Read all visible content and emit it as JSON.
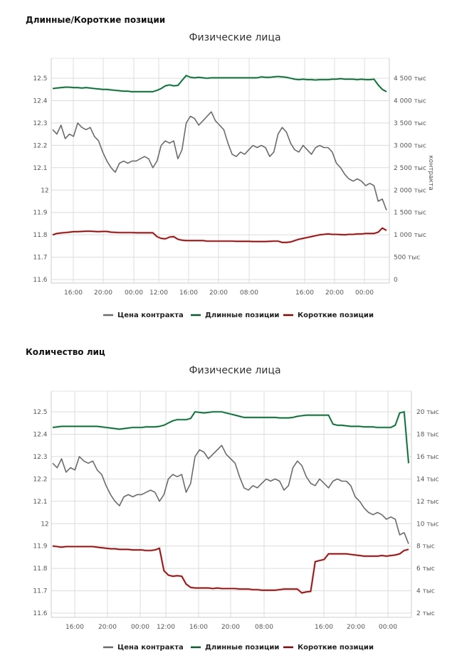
{
  "chart_data": [
    {
      "type": "line",
      "section_title": "Длинные/Короткие позиции",
      "title": "Физические лица",
      "left_axis": {
        "ticks": [
          "12.5",
          "12.4",
          "12.3",
          "12.2",
          "12.1",
          "12",
          "11.9",
          "11.8",
          "11.7",
          "11.6"
        ],
        "range": [
          11.6,
          12.59
        ]
      },
      "right_axis": {
        "label": "контракта",
        "ticks": [
          "4 500 тыс",
          "4 000 тыс",
          "3 500 тыс",
          "3 000 тыс",
          "2 500 тыс",
          "2 000 тыс",
          "1 500 тыс",
          "1 000 тыс",
          "500 тыс",
          "0"
        ],
        "values": [
          4500,
          4000,
          3500,
          3000,
          2500,
          2000,
          1500,
          1000,
          500,
          0
        ],
        "range": [
          0,
          5000
        ]
      },
      "x_ticks": [
        "16:00",
        "20:00",
        "00:00",
        "12:00",
        "16:00",
        "20:00",
        "08:00",
        "16:00",
        "20:00",
        "00:00"
      ],
      "grid": true,
      "legend": [
        "Цена контракта",
        "Длинные позиции",
        "Короткие позиции"
      ],
      "legend_position": "bottom",
      "colors": {
        "price": "#6b6b6b",
        "long": "#0b5a32",
        "short": "#7a0a0a"
      },
      "series": [
        {
          "name": "Цена контракта",
          "axis": "left",
          "values": [
            12.27,
            12.25,
            12.29,
            12.23,
            12.25,
            12.24,
            12.3,
            12.28,
            12.27,
            12.28,
            12.24,
            12.22,
            12.17,
            12.13,
            12.1,
            12.08,
            12.12,
            12.13,
            12.12,
            12.13,
            12.13,
            12.14,
            12.15,
            12.14,
            12.1,
            12.13,
            12.2,
            12.22,
            12.21,
            12.22,
            12.14,
            12.18,
            12.3,
            12.33,
            12.32,
            12.29,
            12.31,
            12.33,
            12.35,
            12.31,
            12.29,
            12.27,
            12.21,
            12.16,
            12.15,
            12.17,
            12.16,
            12.18,
            12.2,
            12.19,
            12.2,
            12.19,
            12.15,
            12.17,
            12.25,
            12.28,
            12.26,
            12.21,
            12.18,
            12.17,
            12.2,
            12.18,
            12.16,
            12.19,
            12.2,
            12.19,
            12.19,
            12.17,
            12.12,
            12.1,
            12.07,
            12.05,
            12.04,
            12.05,
            12.04,
            12.02,
            12.03,
            12.02,
            11.95,
            11.96,
            11.91
          ]
        },
        {
          "name": "Длинные позиции",
          "axis": "right",
          "values": [
            4270,
            4280,
            4290,
            4300,
            4300,
            4290,
            4290,
            4280,
            4290,
            4280,
            4270,
            4260,
            4250,
            4250,
            4240,
            4230,
            4220,
            4210,
            4210,
            4200,
            4200,
            4200,
            4200,
            4200,
            4200,
            4230,
            4270,
            4330,
            4350,
            4330,
            4340,
            4450,
            4560,
            4520,
            4510,
            4520,
            4510,
            4500,
            4510,
            4510,
            4510,
            4510,
            4510,
            4510,
            4510,
            4510,
            4510,
            4510,
            4510,
            4510,
            4530,
            4520,
            4520,
            4530,
            4540,
            4530,
            4520,
            4500,
            4480,
            4470,
            4480,
            4470,
            4470,
            4460,
            4470,
            4470,
            4470,
            4480,
            4480,
            4490,
            4480,
            4480,
            4480,
            4470,
            4480,
            4470,
            4470,
            4480,
            4350,
            4250,
            4200
          ]
        },
        {
          "name": "Короткие позиции",
          "axis": "right",
          "values": [
            1000,
            1030,
            1040,
            1050,
            1060,
            1070,
            1070,
            1075,
            1080,
            1080,
            1075,
            1070,
            1075,
            1075,
            1060,
            1055,
            1050,
            1050,
            1050,
            1050,
            1045,
            1045,
            1045,
            1045,
            1045,
            960,
            920,
            910,
            950,
            960,
            900,
            880,
            870,
            870,
            870,
            870,
            870,
            860,
            860,
            860,
            860,
            860,
            860,
            860,
            855,
            855,
            855,
            855,
            850,
            850,
            850,
            850,
            855,
            860,
            860,
            830,
            830,
            840,
            870,
            900,
            920,
            940,
            960,
            980,
            1000,
            1010,
            1020,
            1010,
            1010,
            1005,
            1000,
            1010,
            1010,
            1020,
            1020,
            1030,
            1030,
            1030,
            1060,
            1150,
            1100
          ]
        }
      ]
    },
    {
      "type": "line",
      "section_title": "Количество лиц",
      "title": "Физические лица",
      "left_axis": {
        "ticks": [
          "12.5",
          "12.4",
          "12.3",
          "12.2",
          "12.1",
          "12",
          "11.9",
          "11.8",
          "11.7",
          "11.6"
        ],
        "range": [
          11.6,
          12.6
        ]
      },
      "right_axis": {
        "ticks": [
          "20 тыс",
          "18 тыс",
          "16 тыс",
          "14 тыс",
          "12 тыс",
          "10 тыс",
          "8 тыс",
          "6 тыс",
          "4 тыс",
          "2 тыс"
        ],
        "values": [
          20000,
          18000,
          16000,
          14000,
          12000,
          10000,
          8000,
          6000,
          4000,
          2000
        ],
        "range": [
          2000,
          22000
        ]
      },
      "x_ticks": [
        "16:00",
        "20:00",
        "00:00",
        "12:00",
        "16:00",
        "20:00",
        "08:00",
        "16:00",
        "20:00",
        "00:00"
      ],
      "grid": true,
      "legend": [
        "Цена контракта",
        "Длинные позиции",
        "Короткие позиции"
      ],
      "legend_position": "bottom",
      "colors": {
        "price": "#6b6b6b",
        "long": "#0b5a32",
        "short": "#7a0a0a"
      },
      "series": [
        {
          "name": "Цена контракта",
          "axis": "left",
          "values": [
            12.27,
            12.25,
            12.29,
            12.23,
            12.25,
            12.24,
            12.3,
            12.28,
            12.27,
            12.28,
            12.24,
            12.22,
            12.17,
            12.13,
            12.1,
            12.08,
            12.12,
            12.13,
            12.12,
            12.13,
            12.13,
            12.14,
            12.15,
            12.14,
            12.1,
            12.13,
            12.2,
            12.22,
            12.21,
            12.22,
            12.14,
            12.18,
            12.3,
            12.33,
            12.32,
            12.29,
            12.31,
            12.33,
            12.35,
            12.31,
            12.29,
            12.27,
            12.21,
            12.16,
            12.15,
            12.17,
            12.16,
            12.18,
            12.2,
            12.19,
            12.2,
            12.19,
            12.15,
            12.17,
            12.25,
            12.28,
            12.26,
            12.21,
            12.18,
            12.17,
            12.2,
            12.18,
            12.16,
            12.19,
            12.2,
            12.19,
            12.19,
            12.17,
            12.12,
            12.1,
            12.07,
            12.05,
            12.04,
            12.05,
            12.04,
            12.02,
            12.03,
            12.02,
            11.95,
            11.96,
            11.91
          ]
        },
        {
          "name": "Длинные позиции",
          "axis": "right",
          "values": [
            18600,
            18650,
            18700,
            18700,
            18700,
            18700,
            18700,
            18700,
            18700,
            18700,
            18700,
            18650,
            18600,
            18550,
            18500,
            18450,
            18500,
            18550,
            18600,
            18600,
            18600,
            18650,
            18650,
            18650,
            18700,
            18800,
            19000,
            19200,
            19300,
            19300,
            19300,
            19400,
            20000,
            19950,
            19900,
            19950,
            20000,
            20000,
            20000,
            19900,
            19800,
            19700,
            19600,
            19500,
            19500,
            19500,
            19500,
            19500,
            19500,
            19500,
            19500,
            19450,
            19450,
            19450,
            19500,
            19600,
            19650,
            19700,
            19700,
            19700,
            19700,
            19700,
            19700,
            18900,
            18800,
            18800,
            18750,
            18700,
            18700,
            18700,
            18650,
            18650,
            18650,
            18600,
            18600,
            18600,
            18600,
            18800,
            19900,
            20000,
            15400
          ]
        },
        {
          "name": "Короткие позиции",
          "axis": "right",
          "values": [
            8000,
            7950,
            7900,
            7950,
            7950,
            7950,
            7950,
            7950,
            7950,
            7950,
            7900,
            7850,
            7800,
            7750,
            7750,
            7700,
            7700,
            7700,
            7650,
            7650,
            7650,
            7600,
            7600,
            7650,
            7800,
            5800,
            5400,
            5300,
            5350,
            5300,
            4600,
            4300,
            4250,
            4250,
            4250,
            4250,
            4200,
            4250,
            4200,
            4200,
            4200,
            4200,
            4150,
            4150,
            4150,
            4100,
            4100,
            4050,
            4050,
            4050,
            4050,
            4100,
            4150,
            4150,
            4150,
            4150,
            3800,
            3900,
            3950,
            6600,
            6700,
            6800,
            7300,
            7300,
            7300,
            7300,
            7300,
            7250,
            7200,
            7150,
            7100,
            7100,
            7100,
            7100,
            7150,
            7100,
            7150,
            7200,
            7300,
            7600,
            7700
          ]
        }
      ]
    }
  ]
}
